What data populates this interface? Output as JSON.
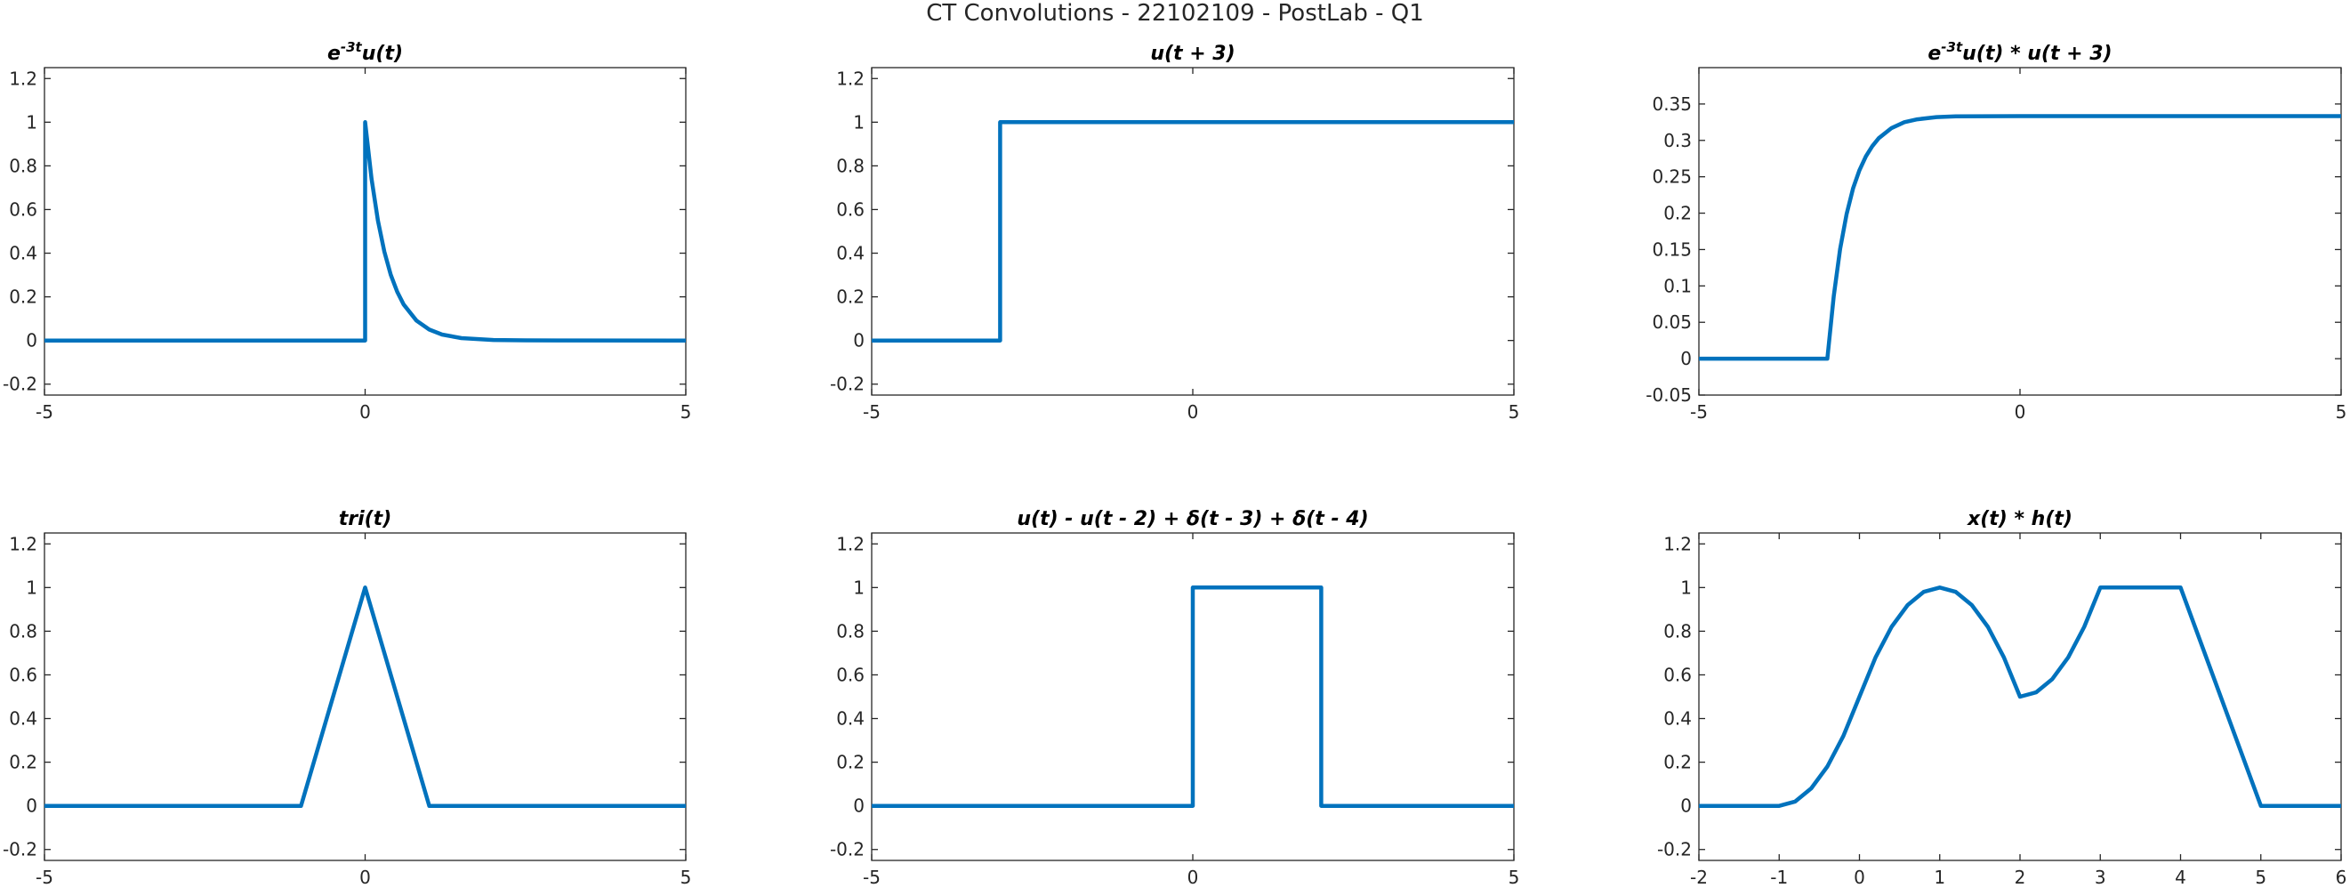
{
  "figure_title": "CT Convolutions - 22102109 - PostLab - Q1",
  "colors": {
    "line": "#0072BD",
    "axes": "#262626"
  },
  "chart_data": [
    {
      "type": "line",
      "title_parts": [
        {
          "t": "e"
        },
        {
          "t": "-3t",
          "sup": true
        },
        {
          "t": "u(t)"
        }
      ],
      "xlim": [
        -5,
        5
      ],
      "ylim": [
        -0.25,
        1.25
      ],
      "xticks": [
        -5,
        0,
        5
      ],
      "xtick_labels": [
        "-5",
        "0",
        "5"
      ],
      "yticks": [
        -0.2,
        0,
        0.2,
        0.4,
        0.6,
        0.8,
        1,
        1.2
      ],
      "ytick_labels": [
        "-0.2",
        "0",
        "0.2",
        "0.4",
        "0.6",
        "0.8",
        "1",
        "1.2"
      ],
      "x": [
        -5,
        0,
        0,
        0.1,
        0.2,
        0.3,
        0.4,
        0.5,
        0.6,
        0.8,
        1.0,
        1.2,
        1.5,
        2.0,
        2.5,
        3.0,
        5
      ],
      "y": [
        0,
        0,
        1,
        0.741,
        0.549,
        0.407,
        0.301,
        0.223,
        0.165,
        0.091,
        0.05,
        0.027,
        0.011,
        0.0025,
        0.0006,
        0.0001,
        0
      ]
    },
    {
      "type": "line",
      "title_parts": [
        {
          "t": "u(t + 3)"
        }
      ],
      "xlim": [
        -5,
        5
      ],
      "ylim": [
        -0.25,
        1.25
      ],
      "xticks": [
        -5,
        0,
        5
      ],
      "xtick_labels": [
        "-5",
        "0",
        "5"
      ],
      "yticks": [
        -0.2,
        0,
        0.2,
        0.4,
        0.6,
        0.8,
        1,
        1.2
      ],
      "ytick_labels": [
        "-0.2",
        "0",
        "0.2",
        "0.4",
        "0.6",
        "0.8",
        "1",
        "1.2"
      ],
      "x": [
        -5,
        -3,
        -3,
        5
      ],
      "y": [
        0,
        0,
        1,
        1
      ]
    },
    {
      "type": "line",
      "title_parts": [
        {
          "t": "e"
        },
        {
          "t": "-3t",
          "sup": true
        },
        {
          "t": "u(t) * u(t + 3)"
        }
      ],
      "xlim": [
        -5,
        5
      ],
      "ylim": [
        -0.05,
        0.4
      ],
      "xticks": [
        -5,
        0,
        5
      ],
      "xtick_labels": [
        "-5",
        "0",
        "5"
      ],
      "yticks": [
        -0.05,
        0,
        0.05,
        0.1,
        0.15,
        0.2,
        0.25,
        0.3,
        0.35
      ],
      "ytick_labels": [
        "-0.05",
        "0",
        "0.05",
        "0.1",
        "0.15",
        "0.2",
        "0.25",
        "0.3",
        "0.35"
      ],
      "x": [
        -5,
        -3,
        -2.9,
        -2.8,
        -2.7,
        -2.6,
        -2.5,
        -2.4,
        -2.3,
        -2.2,
        -2.0,
        -1.8,
        -1.6,
        -1.3,
        -1.0,
        0,
        5
      ],
      "y": [
        0,
        0,
        0.086,
        0.151,
        0.199,
        0.234,
        0.259,
        0.278,
        0.292,
        0.303,
        0.317,
        0.325,
        0.329,
        0.332,
        0.333,
        0.3333,
        0.3333
      ]
    },
    {
      "type": "line",
      "title_parts": [
        {
          "t": "tri(t)"
        }
      ],
      "xlim": [
        -5,
        5
      ],
      "ylim": [
        -0.25,
        1.25
      ],
      "xticks": [
        -5,
        0,
        5
      ],
      "xtick_labels": [
        "-5",
        "0",
        "5"
      ],
      "yticks": [
        -0.2,
        0,
        0.2,
        0.4,
        0.6,
        0.8,
        1,
        1.2
      ],
      "ytick_labels": [
        "-0.2",
        "0",
        "0.2",
        "0.4",
        "0.6",
        "0.8",
        "1",
        "1.2"
      ],
      "x": [
        -5,
        -1,
        0,
        1,
        5
      ],
      "y": [
        0,
        0,
        1,
        0,
        0
      ]
    },
    {
      "type": "line",
      "title_parts": [
        {
          "t": "u(t) - u(t - 2) + δ(t - 3) + δ(t - 4)"
        }
      ],
      "xlim": [
        -5,
        5
      ],
      "ylim": [
        -0.25,
        1.25
      ],
      "xticks": [
        -5,
        0,
        5
      ],
      "xtick_labels": [
        "-5",
        "0",
        "5"
      ],
      "yticks": [
        -0.2,
        0,
        0.2,
        0.4,
        0.6,
        0.8,
        1,
        1.2
      ],
      "ytick_labels": [
        "-0.2",
        "0",
        "0.2",
        "0.4",
        "0.6",
        "0.8",
        "1",
        "1.2"
      ],
      "x": [
        -5,
        0,
        0,
        2,
        2,
        5
      ],
      "y": [
        0,
        0,
        1,
        1,
        0,
        0
      ]
    },
    {
      "type": "line",
      "title_parts": [
        {
          "t": "x(t) * h(t)"
        }
      ],
      "xlim": [
        -2,
        6
      ],
      "ylim": [
        -0.25,
        1.25
      ],
      "xticks": [
        -2,
        -1,
        0,
        1,
        2,
        3,
        4,
        5,
        6
      ],
      "xtick_labels": [
        "-2",
        "-1",
        "0",
        "1",
        "2",
        "3",
        "4",
        "5",
        "6"
      ],
      "yticks": [
        -0.2,
        0,
        0.2,
        0.4,
        0.6,
        0.8,
        1,
        1.2
      ],
      "ytick_labels": [
        "-0.2",
        "0",
        "0.2",
        "0.4",
        "0.6",
        "0.8",
        "1",
        "1.2"
      ],
      "x": [
        -2,
        -1,
        -0.8,
        -0.6,
        -0.4,
        -0.2,
        0,
        0.2,
        0.4,
        0.6,
        0.8,
        1.0,
        1.2,
        1.4,
        1.6,
        1.8,
        2.0,
        2.2,
        2.4,
        2.6,
        2.8,
        3.0,
        4.0,
        5.0,
        6.0
      ],
      "y": [
        0,
        0,
        0.02,
        0.08,
        0.18,
        0.32,
        0.5,
        0.68,
        0.82,
        0.92,
        0.98,
        1.0,
        0.98,
        0.92,
        0.82,
        0.68,
        0.5,
        0.52,
        0.58,
        0.68,
        0.82,
        1.0,
        1.0,
        0,
        0
      ]
    }
  ]
}
